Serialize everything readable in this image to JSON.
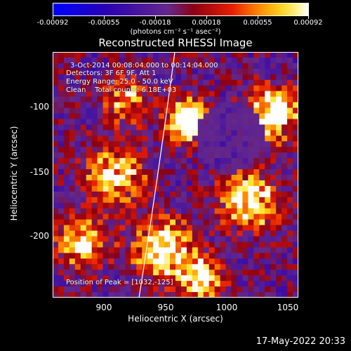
{
  "colorbar": {
    "tick_labels": [
      "-0.00092",
      "-0.00055",
      "-0.00018",
      "0.00018",
      "0.00055",
      "0.00092"
    ],
    "units": "(photons cm⁻² s⁻¹ asec⁻²)"
  },
  "title": "Reconstructed RHESSI Image",
  "info": {
    "time_range": "3-Oct-2014 00:08:04.000 to 00:14:04.000",
    "detectors": "Detectors: 3F 6F 9F, Att 1",
    "energy": "Energy Range: 25.0 - 50.0 keV",
    "method": "Clean    Total counts: 6.18E+03",
    "peak": "Position of Peak = [1032,-125]"
  },
  "axes": {
    "xlabel": "Heliocentric X (arcsec)",
    "ylabel": "Heliocentric Y (arcsec)",
    "xticks": [
      "900",
      "950",
      "1000",
      "1050"
    ],
    "yticks": [
      "-100",
      "-150",
      "-200"
    ]
  },
  "timestamp": "17-May-2022 20:33",
  "colors": {
    "background": "#000000",
    "limb": "#ffffff"
  }
}
